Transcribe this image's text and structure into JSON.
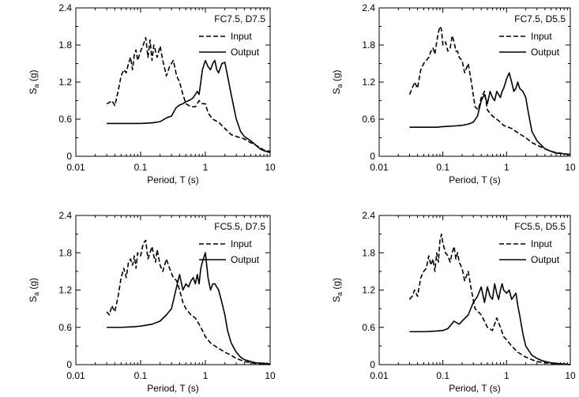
{
  "figure": {
    "xlabel": "Period, T (s)",
    "ylabel_main": "S",
    "ylabel_sub": "a",
    "ylabel_unit": " (g)",
    "legend": {
      "input": "Input",
      "output": "Output"
    }
  },
  "chart_data": [
    {
      "type": "line",
      "title": "FC7.5, D7.5",
      "xlabel": "Period, T (s)",
      "ylabel": "Sa (g)",
      "xscale": "log",
      "xlim": [
        0.01,
        10
      ],
      "ylim": [
        0,
        2.4
      ],
      "xticks": [
        "0.01",
        "0.1",
        "1",
        "10"
      ],
      "yticks": [
        "0",
        "0.6",
        "1.2",
        "1.8",
        "2.4"
      ],
      "grid": false,
      "legend_position": "top-right",
      "series": [
        {
          "name": "Input",
          "style": "dashed",
          "x": [
            0.03,
            0.033,
            0.036,
            0.04,
            0.045,
            0.05,
            0.055,
            0.06,
            0.065,
            0.07,
            0.075,
            0.08,
            0.085,
            0.09,
            0.1,
            0.11,
            0.12,
            0.13,
            0.14,
            0.15,
            0.16,
            0.17,
            0.18,
            0.2,
            0.22,
            0.25,
            0.28,
            0.32,
            0.36,
            0.4,
            0.45,
            0.5,
            0.6,
            0.7,
            0.8,
            0.9,
            1.0,
            1.1,
            1.3,
            1.6,
            2,
            2.5,
            3,
            4,
            5,
            6,
            7,
            8,
            10
          ],
          "y": [
            0.85,
            0.87,
            0.9,
            0.82,
            1.05,
            1.3,
            1.4,
            1.35,
            1.5,
            1.6,
            1.4,
            1.65,
            1.72,
            1.55,
            1.7,
            1.8,
            1.92,
            1.6,
            1.88,
            1.55,
            1.8,
            1.7,
            1.6,
            1.78,
            1.55,
            1.3,
            1.45,
            1.55,
            1.3,
            1.2,
            1.0,
            0.85,
            0.8,
            0.8,
            0.9,
            0.85,
            0.85,
            0.7,
            0.6,
            0.55,
            0.45,
            0.35,
            0.32,
            0.28,
            0.22,
            0.18,
            0.14,
            0.1,
            0.08
          ]
        },
        {
          "name": "Output",
          "style": "solid",
          "x": [
            0.03,
            0.05,
            0.08,
            0.1,
            0.15,
            0.2,
            0.25,
            0.3,
            0.35,
            0.4,
            0.45,
            0.5,
            0.55,
            0.6,
            0.65,
            0.7,
            0.75,
            0.8,
            0.85,
            0.9,
            1.0,
            1.1,
            1.2,
            1.3,
            1.4,
            1.5,
            1.6,
            1.8,
            2,
            2.2,
            2.5,
            3,
            3.5,
            4,
            5,
            6,
            7,
            8,
            10
          ],
          "y": [
            0.53,
            0.53,
            0.53,
            0.53,
            0.54,
            0.56,
            0.62,
            0.65,
            0.78,
            0.83,
            0.85,
            0.88,
            0.9,
            0.92,
            0.95,
            1.0,
            1.05,
            1.0,
            1.2,
            1.4,
            1.55,
            1.45,
            1.4,
            1.5,
            1.55,
            1.4,
            1.35,
            1.5,
            1.52,
            1.3,
            1.0,
            0.6,
            0.4,
            0.32,
            0.25,
            0.18,
            0.12,
            0.09,
            0.06
          ]
        }
      ]
    },
    {
      "type": "line",
      "title": "FC7.5, D5.5",
      "xlabel": "Period, T (s)",
      "ylabel": "Sa (g)",
      "xscale": "log",
      "xlim": [
        0.01,
        10
      ],
      "ylim": [
        0,
        2.4
      ],
      "xticks": [
        "0.01",
        "0.1",
        "1",
        "10"
      ],
      "yticks": [
        "0",
        "0.6",
        "1.2",
        "1.8",
        "2.4"
      ],
      "grid": false,
      "legend_position": "top-right",
      "series": [
        {
          "name": "Input",
          "style": "dashed",
          "x": [
            0.03,
            0.033,
            0.036,
            0.04,
            0.045,
            0.05,
            0.055,
            0.06,
            0.065,
            0.07,
            0.075,
            0.08,
            0.085,
            0.09,
            0.095,
            0.1,
            0.11,
            0.12,
            0.13,
            0.14,
            0.15,
            0.16,
            0.17,
            0.18,
            0.2,
            0.22,
            0.25,
            0.28,
            0.32,
            0.36,
            0.4,
            0.45,
            0.5,
            0.6,
            0.7,
            0.8,
            0.9,
            1.0,
            1.2,
            1.5,
            2,
            2.5,
            3,
            4,
            5,
            6,
            8,
            10
          ],
          "y": [
            1.0,
            1.1,
            1.2,
            1.1,
            1.4,
            1.5,
            1.55,
            1.6,
            1.7,
            1.75,
            1.65,
            1.85,
            2.0,
            2.1,
            2.05,
            1.8,
            1.85,
            1.7,
            1.75,
            1.95,
            1.85,
            1.7,
            1.7,
            1.6,
            1.55,
            1.35,
            1.5,
            1.2,
            0.8,
            0.75,
            0.95,
            1.05,
            0.75,
            0.65,
            0.6,
            0.55,
            0.5,
            0.48,
            0.45,
            0.38,
            0.3,
            0.22,
            0.18,
            0.12,
            0.08,
            0.06,
            0.04,
            0.02
          ]
        },
        {
          "name": "Output",
          "style": "solid",
          "x": [
            0.03,
            0.05,
            0.08,
            0.1,
            0.15,
            0.2,
            0.25,
            0.3,
            0.35,
            0.4,
            0.45,
            0.5,
            0.55,
            0.6,
            0.65,
            0.7,
            0.75,
            0.8,
            0.85,
            0.9,
            1.0,
            1.1,
            1.2,
            1.3,
            1.4,
            1.5,
            1.6,
            1.8,
            2,
            2.2,
            2.5,
            3,
            3.5,
            4,
            5,
            6,
            8,
            10
          ],
          "y": [
            0.47,
            0.47,
            0.47,
            0.48,
            0.49,
            0.5,
            0.52,
            0.55,
            0.65,
            0.9,
            1.0,
            0.85,
            1.05,
            0.95,
            0.9,
            1.05,
            1.0,
            0.95,
            1.05,
            1.1,
            1.25,
            1.35,
            1.2,
            1.05,
            1.1,
            1.2,
            1.1,
            1.05,
            0.95,
            0.7,
            0.4,
            0.25,
            0.18,
            0.12,
            0.08,
            0.05,
            0.04,
            0.03
          ]
        }
      ]
    },
    {
      "type": "line",
      "title": "FC5.5, D7.5",
      "xlabel": "Period, T (s)",
      "ylabel": "Sa (g)",
      "xscale": "log",
      "xlim": [
        0.01,
        10
      ],
      "ylim": [
        0,
        2.4
      ],
      "xticks": [
        "0.01",
        "0.1",
        "1",
        "10"
      ],
      "yticks": [
        "0",
        "0.6",
        "1.2",
        "1.8",
        "2.4"
      ],
      "grid": false,
      "legend_position": "top-right",
      "series": [
        {
          "name": "Input",
          "style": "dashed",
          "x": [
            0.03,
            0.033,
            0.036,
            0.04,
            0.045,
            0.05,
            0.055,
            0.06,
            0.065,
            0.07,
            0.075,
            0.08,
            0.085,
            0.09,
            0.1,
            0.11,
            0.12,
            0.13,
            0.14,
            0.15,
            0.16,
            0.17,
            0.18,
            0.2,
            0.22,
            0.25,
            0.28,
            0.32,
            0.36,
            0.4,
            0.45,
            0.5,
            0.6,
            0.7,
            0.8,
            0.9,
            1.0,
            1.2,
            1.5,
            2,
            2.5,
            3,
            4,
            5,
            6,
            7,
            8,
            10
          ],
          "y": [
            0.85,
            0.8,
            0.95,
            0.85,
            1.1,
            1.4,
            1.55,
            1.4,
            1.65,
            1.7,
            1.6,
            1.75,
            1.55,
            1.8,
            1.75,
            1.95,
            2.0,
            1.7,
            1.8,
            1.9,
            1.75,
            1.65,
            1.85,
            1.6,
            1.5,
            1.7,
            1.55,
            1.4,
            1.35,
            1.2,
            1.0,
            0.9,
            0.8,
            0.75,
            0.65,
            0.55,
            0.45,
            0.35,
            0.28,
            0.2,
            0.15,
            0.1,
            0.05,
            0.03,
            0.02,
            0.01,
            0.01,
            0.0
          ]
        },
        {
          "name": "Output",
          "style": "solid",
          "x": [
            0.03,
            0.05,
            0.08,
            0.1,
            0.15,
            0.2,
            0.25,
            0.3,
            0.35,
            0.4,
            0.45,
            0.5,
            0.55,
            0.6,
            0.65,
            0.7,
            0.75,
            0.8,
            0.85,
            0.9,
            1.0,
            1.1,
            1.2,
            1.3,
            1.4,
            1.5,
            1.6,
            1.8,
            2,
            2.2,
            2.5,
            3,
            3.5,
            4,
            5,
            6,
            8,
            10
          ],
          "y": [
            0.6,
            0.6,
            0.61,
            0.62,
            0.65,
            0.7,
            0.8,
            0.9,
            1.2,
            1.45,
            1.2,
            1.3,
            1.25,
            1.35,
            1.4,
            1.3,
            1.45,
            1.3,
            1.55,
            1.65,
            1.8,
            1.4,
            1.2,
            1.3,
            1.3,
            1.25,
            1.2,
            1.0,
            0.8,
            0.55,
            0.35,
            0.2,
            0.12,
            0.08,
            0.05,
            0.03,
            0.02,
            0.01
          ]
        }
      ]
    },
    {
      "type": "line",
      "title": "FC5.5, D5.5",
      "xlabel": "Period, T (s)",
      "ylabel": "Sa (g)",
      "xscale": "log",
      "xlim": [
        0.01,
        10
      ],
      "ylim": [
        0,
        2.4
      ],
      "xticks": [
        "0.01",
        "0.1",
        "1",
        "10"
      ],
      "yticks": [
        "0",
        "0.6",
        "1.2",
        "1.8",
        "2.4"
      ],
      "grid": false,
      "legend_position": "top-right",
      "series": [
        {
          "name": "Input",
          "style": "dashed",
          "x": [
            0.03,
            0.033,
            0.036,
            0.04,
            0.045,
            0.05,
            0.055,
            0.06,
            0.065,
            0.07,
            0.075,
            0.08,
            0.085,
            0.09,
            0.095,
            0.1,
            0.11,
            0.12,
            0.13,
            0.14,
            0.15,
            0.16,
            0.17,
            0.18,
            0.2,
            0.22,
            0.25,
            0.28,
            0.32,
            0.36,
            0.4,
            0.45,
            0.5,
            0.6,
            0.7,
            0.8,
            0.9,
            1.0,
            1.2,
            1.5,
            2,
            2.5,
            3,
            4,
            5,
            6,
            8,
            10
          ],
          "y": [
            1.05,
            1.1,
            1.2,
            1.1,
            1.4,
            1.5,
            1.55,
            1.75,
            1.6,
            1.7,
            1.5,
            1.8,
            1.65,
            2.0,
            2.1,
            1.95,
            1.8,
            1.75,
            1.65,
            1.8,
            1.9,
            1.7,
            1.8,
            1.65,
            1.55,
            1.35,
            1.5,
            1.2,
            0.9,
            0.85,
            0.8,
            0.7,
            0.6,
            0.55,
            0.75,
            0.6,
            0.45,
            0.4,
            0.3,
            0.2,
            0.12,
            0.08,
            0.05,
            0.03,
            0.02,
            0.01,
            0.01,
            0.0
          ]
        },
        {
          "name": "Output",
          "style": "solid",
          "x": [
            0.03,
            0.05,
            0.08,
            0.1,
            0.12,
            0.15,
            0.18,
            0.2,
            0.25,
            0.3,
            0.35,
            0.4,
            0.45,
            0.5,
            0.55,
            0.6,
            0.65,
            0.7,
            0.75,
            0.8,
            0.85,
            0.9,
            1.0,
            1.1,
            1.2,
            1.3,
            1.4,
            1.5,
            1.6,
            1.8,
            2,
            2.5,
            3,
            3.5,
            4,
            5,
            6,
            8,
            10
          ],
          "y": [
            0.53,
            0.53,
            0.54,
            0.55,
            0.58,
            0.7,
            0.65,
            0.7,
            0.8,
            1.0,
            1.1,
            1.25,
            1.0,
            1.25,
            1.1,
            1.05,
            1.3,
            1.15,
            1.05,
            1.2,
            1.3,
            1.2,
            1.15,
            1.2,
            1.05,
            1.1,
            1.15,
            0.95,
            0.8,
            0.5,
            0.3,
            0.15,
            0.1,
            0.07,
            0.05,
            0.03,
            0.02,
            0.01,
            0.0
          ]
        }
      ]
    }
  ]
}
